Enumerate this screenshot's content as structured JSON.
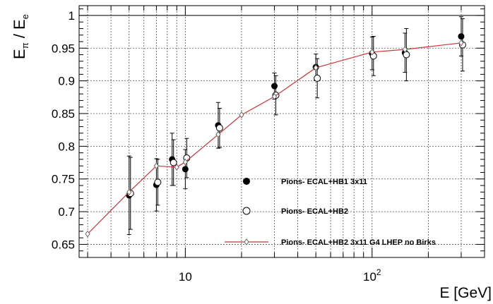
{
  "chart_data": {
    "type": "scatter",
    "title": "",
    "xlabel": "E [GeV]",
    "ylabel": {
      "base1": "E",
      "sub1": "π",
      "sep": " / ",
      "base2": "E",
      "sub2": "e"
    },
    "x_scale": "log",
    "xlim": [
      2.7,
      400
    ],
    "ylim": [
      0.63,
      1.015
    ],
    "y_ticks": [
      0.65,
      0.7,
      0.75,
      0.8,
      0.85,
      0.9,
      0.95,
      1
    ],
    "y_tick_labels": [
      "0.65",
      "0.7",
      "0.75",
      "0.8",
      "0.85",
      "0.9",
      "0.95",
      "1"
    ],
    "x_tick_labels": [
      {
        "value": 10,
        "base": "10",
        "exp": ""
      },
      {
        "value": 100,
        "base": "10",
        "exp": "2"
      }
    ],
    "grid": true,
    "reference_line": 1.0,
    "legend_position": "lower-right",
    "series": [
      {
        "name": "Pions- ECAL+HB1 3x11",
        "marker": "filled-circle",
        "x": [
          5,
          7,
          8.5,
          10,
          15,
          30,
          50,
          100,
          150,
          300
        ],
        "y": [
          0.725,
          0.741,
          0.78,
          0.765,
          0.832,
          0.892,
          0.921,
          0.942,
          0.943,
          0.968
        ],
        "err": [
          0.06,
          0.04,
          0.04,
          0.03,
          0.035,
          0.02,
          0.02,
          0.025,
          0.03,
          0.03
        ]
      },
      {
        "name": "Pions- ECAL+HB2",
        "marker": "open-circle",
        "x": [
          5,
          7,
          8.5,
          10,
          15,
          30,
          50,
          100,
          150,
          300
        ],
        "y": [
          0.728,
          0.745,
          0.775,
          0.782,
          0.828,
          0.878,
          0.904,
          0.938,
          0.94,
          0.955
        ],
        "err": [
          0.055,
          0.035,
          0.035,
          0.03,
          0.03,
          0.03,
          0.03,
          0.03,
          0.04,
          0.04
        ]
      },
      {
        "name": "Pions- ECAL+HB2 3x11 G4 LHEP no Birks",
        "marker": "open-diamond-line",
        "color": "#cc3333",
        "x": [
          3,
          5,
          7,
          9,
          10,
          15,
          20,
          30,
          50,
          100,
          150,
          300
        ],
        "y": [
          0.666,
          0.73,
          0.77,
          0.768,
          0.776,
          0.818,
          0.848,
          0.876,
          0.92,
          0.944,
          0.948,
          0.958
        ]
      }
    ]
  }
}
